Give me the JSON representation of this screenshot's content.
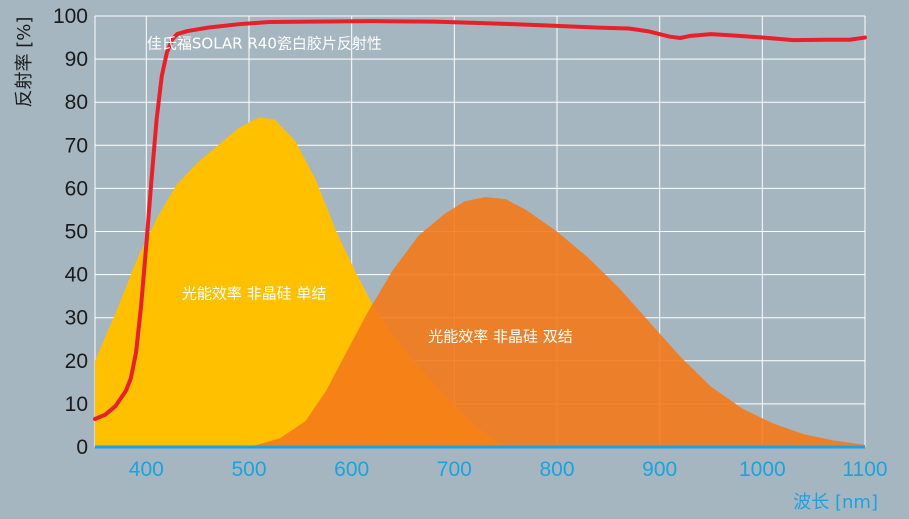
{
  "chart_data": {
    "type": "area",
    "ylabel": "反射率 [%]",
    "xlabel": "波长 [nm]",
    "xlim": [
      350,
      1100
    ],
    "ylim": [
      0,
      100
    ],
    "x_ticks": [
      400,
      500,
      600,
      700,
      800,
      900,
      1000,
      1100
    ],
    "y_ticks": [
      0,
      10,
      20,
      30,
      40,
      50,
      60,
      70,
      80,
      90,
      100
    ],
    "grid": true,
    "colors": {
      "background": "#a6b6c0",
      "grid": "#ffffff",
      "single_junction": "#ffc000",
      "double_junction": "#f47a1a",
      "reflectance": "#e8202a",
      "x_axis": "#1aa3e0"
    },
    "series": [
      {
        "name": "光能效率 非晶硅 单结",
        "kind": "area",
        "points": [
          [
            350,
            20
          ],
          [
            370,
            31
          ],
          [
            390,
            43
          ],
          [
            410,
            53
          ],
          [
            430,
            61
          ],
          [
            450,
            66
          ],
          [
            470,
            70
          ],
          [
            490,
            74
          ],
          [
            510,
            76.5
          ],
          [
            525,
            76
          ],
          [
            545,
            71
          ],
          [
            565,
            62
          ],
          [
            585,
            50
          ],
          [
            605,
            40
          ],
          [
            625,
            31
          ],
          [
            650,
            23
          ],
          [
            675,
            16
          ],
          [
            700,
            10
          ],
          [
            720,
            5
          ],
          [
            740,
            1.5
          ],
          [
            750,
            0
          ]
        ]
      },
      {
        "name": "光能效率 非晶硅 双结",
        "kind": "area",
        "points": [
          [
            500,
            0
          ],
          [
            530,
            2
          ],
          [
            555,
            6
          ],
          [
            575,
            13
          ],
          [
            595,
            22
          ],
          [
            615,
            31
          ],
          [
            640,
            41
          ],
          [
            665,
            49
          ],
          [
            690,
            54
          ],
          [
            710,
            57
          ],
          [
            730,
            58
          ],
          [
            750,
            57.5
          ],
          [
            770,
            55
          ],
          [
            800,
            50
          ],
          [
            830,
            44
          ],
          [
            860,
            37
          ],
          [
            890,
            29
          ],
          [
            920,
            21
          ],
          [
            950,
            14
          ],
          [
            980,
            9
          ],
          [
            1010,
            5.5
          ],
          [
            1040,
            3
          ],
          [
            1070,
            1.5
          ],
          [
            1100,
            0.5
          ]
        ]
      },
      {
        "name": "佳氏福SOLAR R40瓷白胶片反射性",
        "kind": "line",
        "points": [
          [
            350,
            6.5
          ],
          [
            360,
            7.5
          ],
          [
            370,
            9.5
          ],
          [
            380,
            13
          ],
          [
            385,
            16
          ],
          [
            390,
            22
          ],
          [
            395,
            33
          ],
          [
            400,
            47
          ],
          [
            405,
            62
          ],
          [
            410,
            76
          ],
          [
            415,
            86
          ],
          [
            420,
            91.5
          ],
          [
            425,
            94.5
          ],
          [
            430,
            95.8
          ],
          [
            440,
            96.5
          ],
          [
            460,
            97.3
          ],
          [
            490,
            98.1
          ],
          [
            520,
            98.6
          ],
          [
            560,
            98.7
          ],
          [
            620,
            98.8
          ],
          [
            680,
            98.7
          ],
          [
            720,
            98.4
          ],
          [
            760,
            98.1
          ],
          [
            800,
            97.7
          ],
          [
            840,
            97.3
          ],
          [
            870,
            97.1
          ],
          [
            890,
            96.4
          ],
          [
            910,
            95.2
          ],
          [
            920,
            94.9
          ],
          [
            930,
            95.4
          ],
          [
            950,
            95.8
          ],
          [
            970,
            95.5
          ],
          [
            1000,
            95.0
          ],
          [
            1030,
            94.4
          ],
          [
            1060,
            94.5
          ],
          [
            1085,
            94.5
          ],
          [
            1100,
            95.0
          ]
        ]
      }
    ],
    "annotations": [
      {
        "text": "佳氏福SOLAR R40瓷白胶片反射性",
        "x": 515,
        "y": 92.5
      },
      {
        "text": "光能效率 非晶硅 单结",
        "x": 505,
        "y": 34.5
      },
      {
        "text": "光能效率 非晶硅 双结",
        "x": 745,
        "y": 24.5
      }
    ]
  }
}
